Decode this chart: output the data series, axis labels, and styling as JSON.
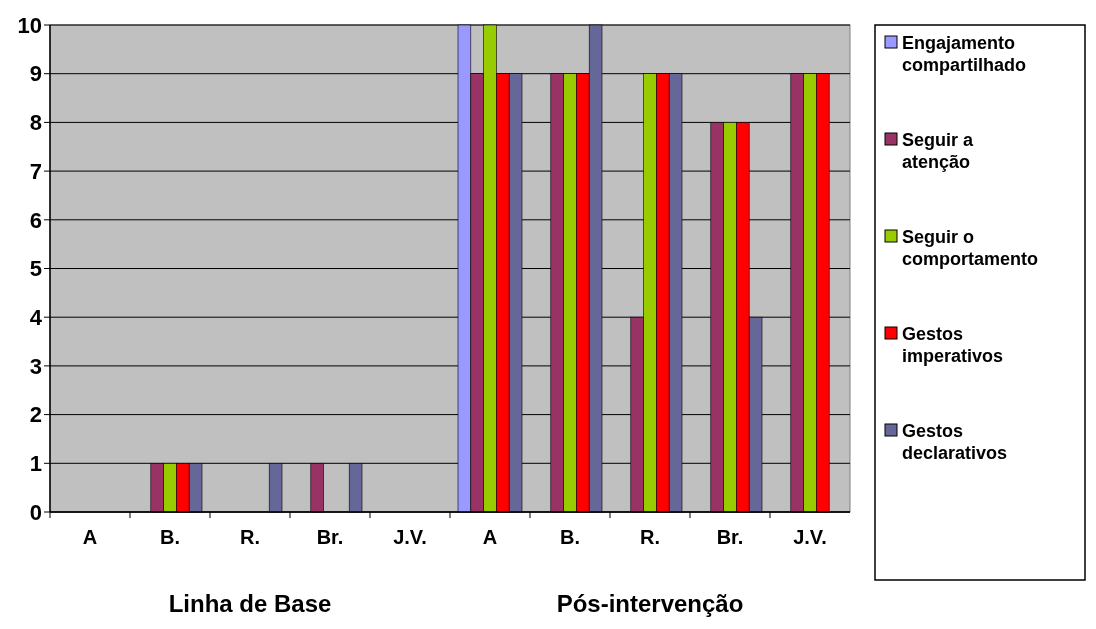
{
  "chart_data": {
    "type": "bar",
    "categories": [
      "A",
      "B.",
      "R.",
      "Br.",
      "J.V.",
      "A",
      "B.",
      "R.",
      "Br.",
      "J.V."
    ],
    "series": [
      {
        "name": "Engajamento compartilhado",
        "color": "#9999ff",
        "values": [
          0,
          0,
          0,
          0,
          0,
          10,
          0,
          0,
          0,
          0
        ]
      },
      {
        "name": "Seguir a atenção",
        "color": "#993366",
        "values": [
          0,
          1,
          0,
          1,
          0,
          9,
          9,
          4,
          8,
          9
        ]
      },
      {
        "name": "Seguir o comportamento",
        "color": "#99cc00",
        "values": [
          0,
          1,
          0,
          0,
          0,
          10,
          9,
          9,
          8,
          9
        ]
      },
      {
        "name": "Gestos imperativos",
        "color": "#ff0000",
        "values": [
          0,
          1,
          0,
          0,
          0,
          9,
          9,
          9,
          8,
          9
        ]
      },
      {
        "name": "Gestos declarativos",
        "color": "#666699",
        "values": [
          0,
          1,
          1,
          1,
          0,
          9,
          10,
          9,
          4,
          0
        ]
      }
    ],
    "ylim": [
      0,
      10
    ],
    "yticks": [
      0,
      1,
      2,
      3,
      4,
      5,
      6,
      7,
      8,
      9,
      10
    ],
    "grid": "y",
    "legend": "right",
    "annotations": [
      "Linha de Base",
      "Pós-intervenção"
    ]
  }
}
